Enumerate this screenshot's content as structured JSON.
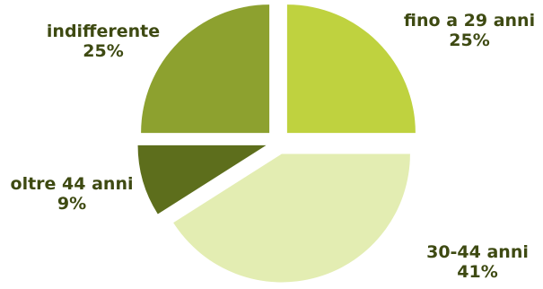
{
  "chart_data": {
    "type": "pie",
    "exploded": true,
    "title": "",
    "slices": [
      {
        "label": "fino a 29 anni",
        "value": 25,
        "display": "25%",
        "color": "#bfd23f"
      },
      {
        "label": "30-44 anni",
        "value": 41,
        "display": "41%",
        "color": "#e3edb2"
      },
      {
        "label": "oltre 44 anni",
        "value": 9,
        "display": "9%",
        "color": "#5d6e1c"
      },
      {
        "label": "indifferente",
        "value": 25,
        "display": "25%",
        "color": "#8da12f"
      }
    ],
    "legend": "none"
  }
}
